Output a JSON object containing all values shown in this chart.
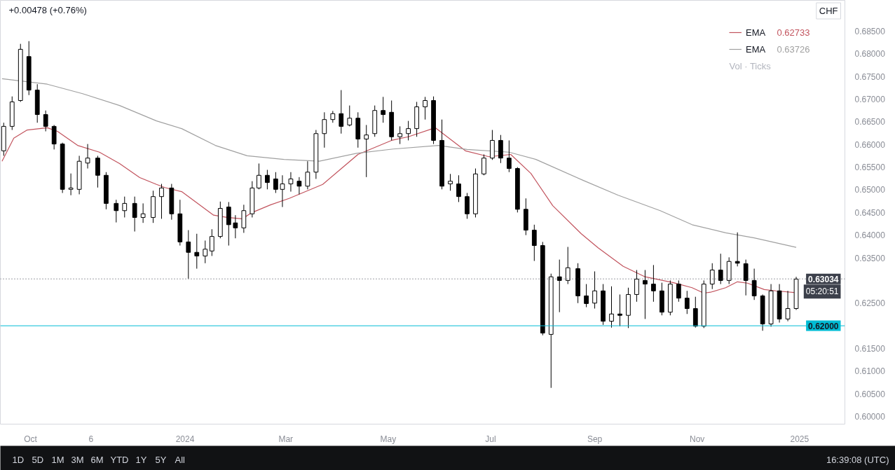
{
  "chart_data": {
    "type": "candlestick",
    "color": "#000000",
    "x": [
      "2023-09-15",
      "2023-09-20",
      "2023-09-25",
      "2023-09-30",
      "2023-10-05",
      "2023-10-10",
      "2023-10-15",
      "2023-10-20",
      "2023-10-25",
      "2023-10-30",
      "2023-11-04",
      "2023-11-10",
      "2023-11-15",
      "2023-11-21",
      "2023-11-26",
      "2023-12-02",
      "2023-12-07",
      "2023-12-13",
      "2023-12-18",
      "2023-12-24",
      "2023-12-29",
      "2024-01-03",
      "2024-01-08",
      "2024-01-13",
      "2024-01-17",
      "2024-01-22",
      "2024-01-27",
      "2024-01-31",
      "2024-02-05",
      "2024-02-10",
      "2024-02-14",
      "2024-02-19",
      "2024-02-24",
      "2024-02-28",
      "2024-03-04",
      "2024-03-09",
      "2024-03-14",
      "2024-03-19",
      "2024-03-24",
      "2024-03-29",
      "2024-04-03",
      "2024-04-08",
      "2024-04-13",
      "2024-04-18",
      "2024-04-23",
      "2024-04-28",
      "2024-05-03",
      "2024-05-08",
      "2024-05-13",
      "2024-05-18",
      "2024-05-23",
      "2024-05-28",
      "2024-06-02",
      "2024-06-07",
      "2024-06-12",
      "2024-06-17",
      "2024-06-22",
      "2024-06-27",
      "2024-07-02",
      "2024-07-07",
      "2024-07-12",
      "2024-07-17",
      "2024-07-22",
      "2024-07-27",
      "2024-08-01",
      "2024-08-06",
      "2024-08-11",
      "2024-08-16",
      "2024-08-22",
      "2024-08-27",
      "2024-09-01",
      "2024-09-06",
      "2024-09-11",
      "2024-09-16",
      "2024-09-21",
      "2024-09-26",
      "2024-10-01",
      "2024-10-06",
      "2024-10-11",
      "2024-10-16",
      "2024-10-21",
      "2024-10-26",
      "2024-10-31",
      "2024-11-05",
      "2024-11-10",
      "2024-11-15",
      "2024-11-20",
      "2024-11-25",
      "2024-11-30",
      "2024-12-05",
      "2024-12-10",
      "2024-12-15",
      "2024-12-20",
      "2024-12-25",
      "2024-12-30"
    ],
    "ohlc": [
      [
        0.6586,
        0.6648,
        0.6575,
        0.664
      ],
      [
        0.664,
        0.6706,
        0.6632,
        0.6694
      ],
      [
        0.6697,
        0.6822,
        0.6694,
        0.681
      ],
      [
        0.6794,
        0.6828,
        0.6709,
        0.672
      ],
      [
        0.672,
        0.6733,
        0.6648,
        0.6666
      ],
      [
        0.6666,
        0.6675,
        0.6629,
        0.664
      ],
      [
        0.664,
        0.6643,
        0.6589,
        0.6601
      ],
      [
        0.6601,
        0.6604,
        0.6493,
        0.6501
      ],
      [
        0.6501,
        0.6536,
        0.6488,
        0.6504
      ],
      [
        0.6501,
        0.6575,
        0.649,
        0.6563
      ],
      [
        0.6559,
        0.6601,
        0.6547,
        0.657
      ],
      [
        0.657,
        0.6575,
        0.6505,
        0.6532
      ],
      [
        0.6532,
        0.6539,
        0.6457,
        0.647
      ],
      [
        0.647,
        0.6478,
        0.6428,
        0.6454
      ],
      [
        0.6454,
        0.6485,
        0.6439,
        0.647
      ],
      [
        0.647,
        0.6485,
        0.6408,
        0.6439
      ],
      [
        0.6439,
        0.647,
        0.6427,
        0.6447
      ],
      [
        0.6439,
        0.6498,
        0.6427,
        0.6485
      ],
      [
        0.6485,
        0.6513,
        0.6436,
        0.6504
      ],
      [
        0.6504,
        0.6513,
        0.6434,
        0.6447
      ],
      [
        0.6447,
        0.6478,
        0.6377,
        0.6385
      ],
      [
        0.6385,
        0.6411,
        0.6304,
        0.6362
      ],
      [
        0.6362,
        0.6403,
        0.6326,
        0.6354
      ],
      [
        0.6354,
        0.6388,
        0.6338,
        0.6369
      ],
      [
        0.6365,
        0.6413,
        0.6354,
        0.6397
      ],
      [
        0.6397,
        0.6474,
        0.6393,
        0.6459
      ],
      [
        0.6462,
        0.6473,
        0.6377,
        0.6423
      ],
      [
        0.6427,
        0.6444,
        0.6393,
        0.6416
      ],
      [
        0.6416,
        0.6467,
        0.6405,
        0.6454
      ],
      [
        0.6447,
        0.6519,
        0.6439,
        0.6504
      ],
      [
        0.6504,
        0.6558,
        0.6501,
        0.6532
      ],
      [
        0.6532,
        0.6544,
        0.6501,
        0.6516
      ],
      [
        0.6524,
        0.6539,
        0.6493,
        0.6501
      ],
      [
        0.6501,
        0.6532,
        0.6462,
        0.6513
      ],
      [
        0.6513,
        0.6539,
        0.6496,
        0.6524
      ],
      [
        0.6519,
        0.6528,
        0.649,
        0.6508
      ],
      [
        0.6508,
        0.6563,
        0.6501,
        0.6539
      ],
      [
        0.6539,
        0.6632,
        0.6524,
        0.6624
      ],
      [
        0.6624,
        0.6671,
        0.6593,
        0.6655
      ],
      [
        0.6655,
        0.6674,
        0.6648,
        0.6668
      ],
      [
        0.6668,
        0.672,
        0.6624,
        0.664
      ],
      [
        0.6643,
        0.6686,
        0.664,
        0.6658
      ],
      [
        0.6658,
        0.6671,
        0.6593,
        0.6612
      ],
      [
        0.6612,
        0.6643,
        0.6528,
        0.6621
      ],
      [
        0.6624,
        0.6686,
        0.6617,
        0.6675
      ],
      [
        0.6675,
        0.6705,
        0.6648,
        0.6666
      ],
      [
        0.6671,
        0.6697,
        0.6609,
        0.6617
      ],
      [
        0.6617,
        0.664,
        0.6601,
        0.6624
      ],
      [
        0.6624,
        0.6652,
        0.6609,
        0.6635
      ],
      [
        0.6635,
        0.6694,
        0.6617,
        0.6683
      ],
      [
        0.6683,
        0.6705,
        0.6655,
        0.6697
      ],
      [
        0.6697,
        0.6706,
        0.6601,
        0.6609
      ],
      [
        0.6609,
        0.6655,
        0.6501,
        0.6508
      ],
      [
        0.6513,
        0.6535,
        0.6498,
        0.6519
      ],
      [
        0.6513,
        0.6532,
        0.6473,
        0.6485
      ],
      [
        0.6485,
        0.6493,
        0.6436,
        0.6447
      ],
      [
        0.6447,
        0.6547,
        0.6439,
        0.6535
      ],
      [
        0.6535,
        0.6578,
        0.6532,
        0.657
      ],
      [
        0.657,
        0.6632,
        0.6566,
        0.6609
      ],
      [
        0.6609,
        0.6621,
        0.6559,
        0.657
      ],
      [
        0.657,
        0.6609,
        0.6539,
        0.6547
      ],
      [
        0.6547,
        0.655,
        0.645,
        0.6457
      ],
      [
        0.6457,
        0.6481,
        0.64,
        0.6411
      ],
      [
        0.6411,
        0.6423,
        0.6343,
        0.6377
      ],
      [
        0.6377,
        0.6385,
        0.6179,
        0.6184
      ],
      [
        0.6181,
        0.6315,
        0.6063,
        0.6308
      ],
      [
        0.6308,
        0.6346,
        0.623,
        0.63
      ],
      [
        0.63,
        0.6374,
        0.6292,
        0.6328
      ],
      [
        0.6326,
        0.6338,
        0.625,
        0.6266
      ],
      [
        0.6266,
        0.6292,
        0.6241,
        0.6249
      ],
      [
        0.625,
        0.632,
        0.6238,
        0.6277
      ],
      [
        0.6277,
        0.6292,
        0.6202,
        0.621
      ],
      [
        0.621,
        0.6287,
        0.6196,
        0.6226
      ],
      [
        0.6226,
        0.6269,
        0.6199,
        0.6223
      ],
      [
        0.6223,
        0.6284,
        0.6195,
        0.6269
      ],
      [
        0.6269,
        0.6323,
        0.6253,
        0.6303
      ],
      [
        0.63,
        0.6323,
        0.6215,
        0.6292
      ],
      [
        0.6292,
        0.6334,
        0.6253,
        0.6277
      ],
      [
        0.6277,
        0.6295,
        0.6223,
        0.623
      ],
      [
        0.623,
        0.63,
        0.6223,
        0.6292
      ],
      [
        0.6292,
        0.63,
        0.6253,
        0.6261
      ],
      [
        0.6261,
        0.6277,
        0.6226,
        0.6238
      ],
      [
        0.6238,
        0.6264,
        0.6196,
        0.6199
      ],
      [
        0.6199,
        0.63,
        0.6195,
        0.6292
      ],
      [
        0.6292,
        0.6338,
        0.6281,
        0.6323
      ],
      [
        0.6323,
        0.6359,
        0.6292,
        0.63
      ],
      [
        0.63,
        0.6351,
        0.6292,
        0.6342
      ],
      [
        0.6342,
        0.6406,
        0.6331,
        0.6338
      ],
      [
        0.6337,
        0.6346,
        0.6267,
        0.63
      ],
      [
        0.63,
        0.6326,
        0.6257,
        0.6266
      ],
      [
        0.6266,
        0.6269,
        0.6189,
        0.6204
      ],
      [
        0.6204,
        0.6292,
        0.6198,
        0.6277
      ],
      [
        0.6277,
        0.6292,
        0.6207,
        0.6215
      ],
      [
        0.6215,
        0.6277,
        0.621,
        0.6238
      ],
      [
        0.6238,
        0.6308,
        0.6235,
        0.6303
      ]
    ],
    "colors": [
      "#ffffff",
      "#ffffff",
      "#ffffff",
      "#000000",
      "#000000",
      "#000000",
      "#000000",
      "#000000",
      "#ffffff",
      "#ffffff",
      "#ffffff",
      "#000000",
      "#000000",
      "#000000",
      "#ffffff",
      "#000000",
      "#ffffff",
      "#ffffff",
      "#ffffff",
      "#000000",
      "#000000",
      "#000000",
      "#000000",
      "#ffffff",
      "#ffffff",
      "#ffffff",
      "#000000",
      "#000000",
      "#ffffff",
      "#ffffff",
      "#ffffff",
      "#000000",
      "#000000",
      "#ffffff",
      "#ffffff",
      "#000000",
      "#ffffff",
      "#ffffff",
      "#ffffff",
      "#ffffff",
      "#000000",
      "#ffffff",
      "#000000",
      "#ffffff",
      "#ffffff",
      "#000000",
      "#000000",
      "#ffffff",
      "#ffffff",
      "#ffffff",
      "#ffffff",
      "#000000",
      "#000000",
      "#ffffff",
      "#000000",
      "#000000",
      "#ffffff",
      "#ffffff",
      "#ffffff",
      "#000000",
      "#000000",
      "#000000",
      "#000000",
      "#000000",
      "#000000",
      "#ffffff",
      "#000000",
      "#ffffff",
      "#000000",
      "#000000",
      "#ffffff",
      "#000000",
      "#ffffff",
      "#000000",
      "#ffffff",
      "#ffffff",
      "#000000",
      "#000000",
      "#000000",
      "#ffffff",
      "#000000",
      "#000000",
      "#000000",
      "#ffffff",
      "#ffffff",
      "#000000",
      "#ffffff",
      "#000000",
      "#000000",
      "#000000",
      "#000000",
      "#ffffff",
      "#000000",
      "#ffffff",
      "#ffffff"
    ],
    "series": [
      {
        "type": "line",
        "name": "EMA",
        "color": "#c2545e",
        "x": [
          "2023-09-14",
          "2023-09-21",
          "2023-09-29",
          "2023-10-11",
          "2023-10-17",
          "2023-10-29",
          "2023-11-11",
          "2023-11-23",
          "2023-12-05",
          "2023-12-15",
          "2023-12-20",
          "2023-12-30",
          "2024-01-18",
          "2024-01-26",
          "2024-02-04",
          "2024-02-10",
          "2024-02-21",
          "2024-03-03",
          "2024-03-23",
          "2024-04-13",
          "2024-05-03",
          "2024-05-13",
          "2024-05-29",
          "2024-06-16",
          "2024-06-30",
          "2024-07-13",
          "2024-07-25",
          "2024-08-07",
          "2024-08-24",
          "2024-09-03",
          "2024-09-18",
          "2024-10-01",
          "2024-10-18",
          "2024-10-29",
          "2024-11-05",
          "2024-11-09",
          "2024-11-18",
          "2024-11-25",
          "2024-12-01",
          "2024-12-11",
          "2024-12-18",
          "2024-12-30"
        ],
        "values": [
          0.6563,
          0.6614,
          0.6632,
          0.6637,
          0.6629,
          0.6598,
          0.6583,
          0.6558,
          0.6527,
          0.6512,
          0.6505,
          0.6496,
          0.6444,
          0.6439,
          0.6436,
          0.645,
          0.6467,
          0.6481,
          0.6512,
          0.6578,
          0.6609,
          0.6617,
          0.6637,
          0.6586,
          0.6573,
          0.6578,
          0.6536,
          0.6465,
          0.6403,
          0.6372,
          0.6331,
          0.6308,
          0.6295,
          0.6284,
          0.6272,
          0.6274,
          0.6284,
          0.6297,
          0.6294,
          0.628,
          0.6277,
          0.6273
        ]
      },
      {
        "type": "line",
        "name": "EMA",
        "color": "#a0a0a0",
        "x": [
          "2023-09-14",
          "2023-10-11",
          "2023-11-01",
          "2023-11-23",
          "2023-12-15",
          "2023-12-30",
          "2024-01-19",
          "2024-02-07",
          "2024-02-29",
          "2024-03-21",
          "2024-04-13",
          "2024-05-04",
          "2024-05-31",
          "2024-06-17",
          "2024-07-12",
          "2024-07-28",
          "2024-08-25",
          "2024-09-15",
          "2024-10-10",
          "2024-10-29",
          "2024-11-18",
          "2024-12-05",
          "2024-12-30"
        ],
        "values": [
          0.6745,
          0.6733,
          0.6712,
          0.6686,
          0.6652,
          0.6635,
          0.6598,
          0.6575,
          0.6567,
          0.6563,
          0.6581,
          0.659,
          0.6598,
          0.6589,
          0.6583,
          0.6567,
          0.6521,
          0.6488,
          0.6454,
          0.6423,
          0.6405,
          0.6394,
          0.6373
        ]
      }
    ],
    "xlim": [
      "2023-09-13",
      "2025-01-28"
    ],
    "xticks": [
      {
        "value": "2023-10-01",
        "label": "Oct"
      },
      {
        "value": "2023-11-06",
        "label": "6"
      },
      {
        "value": "2024-01-01",
        "label": "2024"
      },
      {
        "value": "2024-03-01",
        "label": "Mar"
      },
      {
        "value": "2024-05-01",
        "label": "May"
      },
      {
        "value": "2024-07-01",
        "label": "Jul"
      },
      {
        "value": "2024-09-01",
        "label": "Sep"
      },
      {
        "value": "2024-11-01",
        "label": "Nov"
      },
      {
        "value": "2025-01-01",
        "label": "2025"
      }
    ],
    "ylim": [
      0.5983,
      0.6918
    ],
    "yticks": [
      {
        "value": 0.6,
        "label": "0.60000"
      },
      {
        "value": 0.605,
        "label": "0.60500"
      },
      {
        "value": 0.61,
        "label": "0.61000"
      },
      {
        "value": 0.615,
        "label": "0.61500"
      },
      {
        "value": 0.625,
        "label": "0.62500"
      },
      {
        "value": 0.635,
        "label": "0.63500"
      },
      {
        "value": 0.64,
        "label": "0.64000"
      },
      {
        "value": 0.645,
        "label": "0.64500"
      },
      {
        "value": 0.65,
        "label": "0.65000"
      },
      {
        "value": 0.655,
        "label": "0.65500"
      },
      {
        "value": 0.66,
        "label": "0.66000"
      },
      {
        "value": 0.665,
        "label": "0.66500"
      },
      {
        "value": 0.67,
        "label": "0.67000"
      },
      {
        "value": 0.675,
        "label": "0.67500"
      },
      {
        "value": 0.68,
        "label": "0.68000"
      },
      {
        "value": 0.685,
        "label": "0.68500"
      }
    ],
    "ref_lines": [
      {
        "axis": "y",
        "value": 0.62,
        "label": "0.62000",
        "color": "#00bcd4",
        "line_style": "solid"
      },
      {
        "axis": "y",
        "value": 0.63034,
        "label": "0.63034",
        "color": "#3c404b",
        "line_style": "dotted"
      }
    ],
    "legend": "top right",
    "annotations": [
      "+0.00478 (+0.76%)",
      "0.62733",
      "0.63726",
      "Vol · Ticks",
      "05:20:51",
      "CHF",
      "1D",
      "5D",
      "1M",
      "3M",
      "6M",
      "YTD",
      "1Y",
      "5Y",
      "All",
      "16:39:08 (UTC)"
    ]
  }
}
